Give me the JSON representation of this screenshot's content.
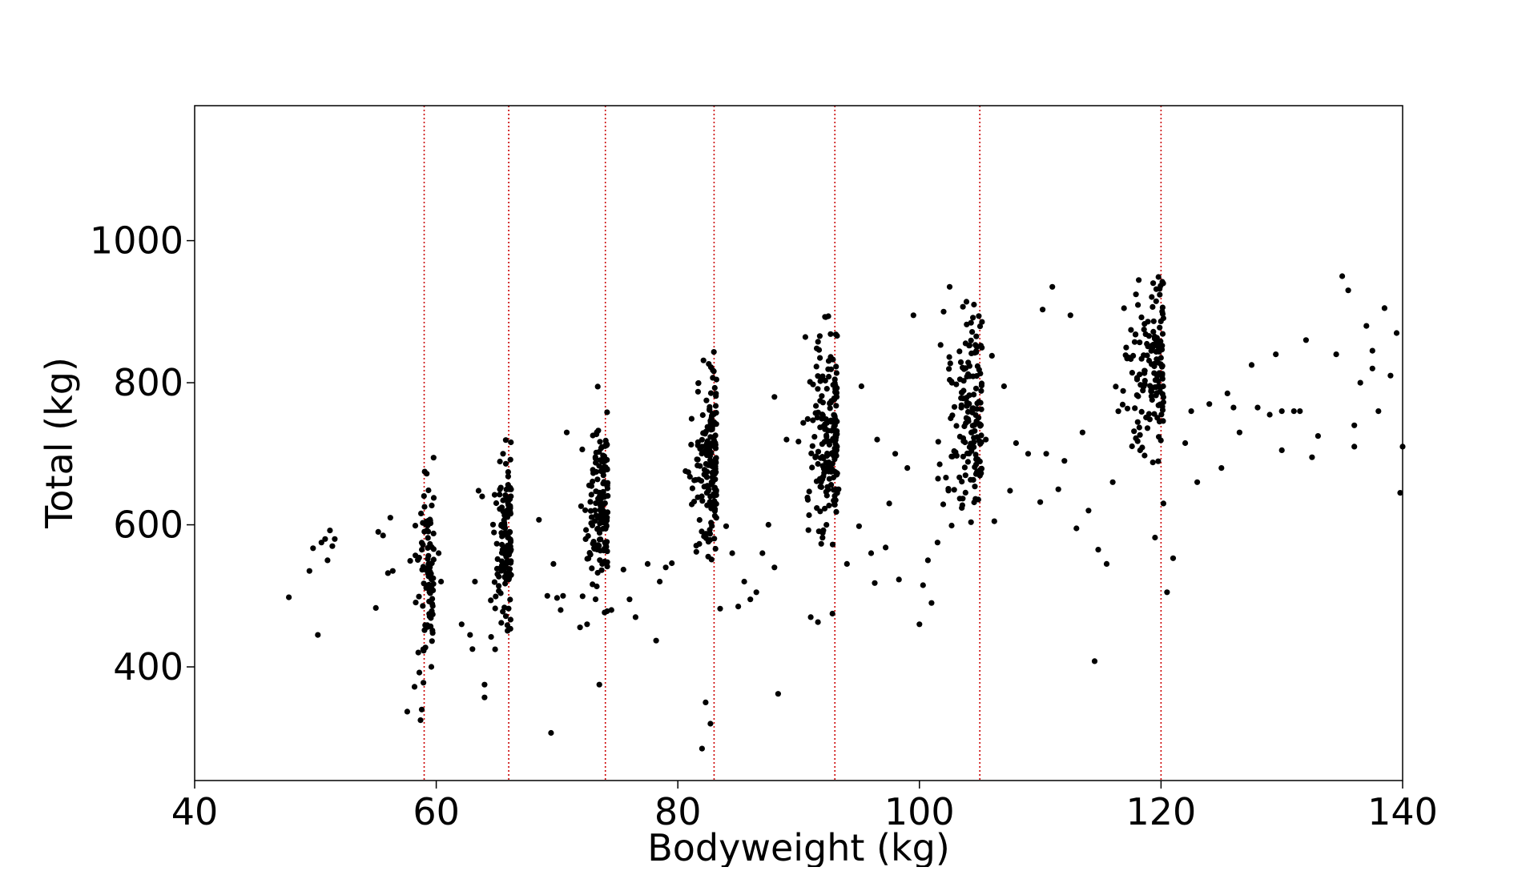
{
  "chart_data": {
    "type": "scatter",
    "title": "",
    "xlabel": "Bodyweight (kg)",
    "ylabel": "Total (kg)",
    "xlim": [
      40,
      140
    ],
    "ylim": [
      240,
      1190
    ],
    "x_ticks": [
      40,
      60,
      80,
      100,
      120,
      140
    ],
    "y_ticks": [
      400,
      600,
      800,
      1000
    ],
    "grid": false,
    "point_color": "#000000",
    "reference_line_color": "#cc0000",
    "reference_lines_x": [
      59,
      66,
      74,
      83,
      93,
      105,
      120
    ],
    "clusters": [
      {
        "x_range": [
          57.5,
          59.8
        ],
        "y_center": 530,
        "y_spread": 75,
        "count": 90
      },
      {
        "x_range": [
          64.3,
          66.2
        ],
        "y_center": 575,
        "y_spread": 70,
        "count": 130
      },
      {
        "x_range": [
          71.5,
          74.2
        ],
        "y_center": 625,
        "y_spread": 75,
        "count": 150
      },
      {
        "x_range": [
          80.5,
          83.2
        ],
        "y_center": 680,
        "y_spread": 75,
        "count": 170
      },
      {
        "x_range": [
          89.5,
          93.2
        ],
        "y_center": 720,
        "y_spread": 80,
        "count": 190
      },
      {
        "x_range": [
          101.0,
          105.2
        ],
        "y_center": 760,
        "y_spread": 80,
        "count": 160
      },
      {
        "x_range": [
          115.5,
          120.2
        ],
        "y_center": 820,
        "y_spread": 80,
        "count": 150
      }
    ],
    "points": [
      [
        47.8,
        498
      ],
      [
        49.5,
        535
      ],
      [
        49.8,
        567
      ],
      [
        50.2,
        445
      ],
      [
        50.5,
        575
      ],
      [
        50.8,
        580
      ],
      [
        51.0,
        550
      ],
      [
        51.2,
        592
      ],
      [
        51.4,
        570
      ],
      [
        51.6,
        580
      ],
      [
        55.0,
        483
      ],
      [
        55.2,
        590
      ],
      [
        55.6,
        585
      ],
      [
        56.0,
        532
      ],
      [
        56.2,
        610
      ],
      [
        56.4,
        535
      ],
      [
        57.6,
        337
      ],
      [
        58.2,
        372
      ],
      [
        58.7,
        325
      ],
      [
        58.8,
        340
      ],
      [
        58.6,
        392
      ],
      [
        60.2,
        560
      ],
      [
        60.4,
        520
      ],
      [
        62.1,
        460
      ],
      [
        62.8,
        445
      ],
      [
        63.0,
        425
      ],
      [
        63.2,
        520
      ],
      [
        63.5,
        648
      ],
      [
        64.0,
        375
      ],
      [
        64.0,
        357
      ],
      [
        63.8,
        640
      ],
      [
        68.5,
        607
      ],
      [
        69.5,
        307
      ],
      [
        69.2,
        500
      ],
      [
        69.7,
        545
      ],
      [
        70.5,
        500
      ],
      [
        70.0,
        497
      ],
      [
        70.3,
        480
      ],
      [
        70.8,
        730
      ],
      [
        73.5,
        375
      ],
      [
        74.5,
        480
      ],
      [
        75.5,
        537
      ],
      [
        76.0,
        495
      ],
      [
        76.5,
        470
      ],
      [
        77.5,
        545
      ],
      [
        78.2,
        437
      ],
      [
        78.5,
        520
      ],
      [
        79.0,
        540
      ],
      [
        79.5,
        546
      ],
      [
        82.3,
        350
      ],
      [
        82.0,
        285
      ],
      [
        82.7,
        320
      ],
      [
        83.5,
        482
      ],
      [
        84.0,
        598
      ],
      [
        84.5,
        560
      ],
      [
        85.0,
        485
      ],
      [
        85.5,
        520
      ],
      [
        86.0,
        495
      ],
      [
        86.5,
        505
      ],
      [
        87.0,
        560
      ],
      [
        87.5,
        600
      ],
      [
        88.0,
        540
      ],
      [
        88.3,
        362
      ],
      [
        88.0,
        780
      ],
      [
        89.0,
        720
      ],
      [
        91.0,
        470
      ],
      [
        91.6,
        463
      ],
      [
        92.8,
        475
      ],
      [
        93.3,
        650
      ],
      [
        94.0,
        545
      ],
      [
        95.0,
        598
      ],
      [
        95.2,
        795
      ],
      [
        96.0,
        560
      ],
      [
        96.3,
        518
      ],
      [
        96.5,
        720
      ],
      [
        97.2,
        568
      ],
      [
        97.5,
        630
      ],
      [
        98.0,
        700
      ],
      [
        98.3,
        523
      ],
      [
        99.0,
        680
      ],
      [
        99.5,
        895
      ],
      [
        100.0,
        460
      ],
      [
        100.3,
        515
      ],
      [
        100.7,
        550
      ],
      [
        101.0,
        490
      ],
      [
        101.5,
        575
      ],
      [
        102.0,
        900
      ],
      [
        102.5,
        935
      ],
      [
        105.5,
        720
      ],
      [
        106.0,
        838
      ],
      [
        106.2,
        605
      ],
      [
        107.0,
        795
      ],
      [
        107.5,
        648
      ],
      [
        108.0,
        715
      ],
      [
        109.0,
        700
      ],
      [
        110.0,
        632
      ],
      [
        110.2,
        903
      ],
      [
        110.5,
        700
      ],
      [
        111.0,
        935
      ],
      [
        111.5,
        650
      ],
      [
        112.0,
        690
      ],
      [
        112.5,
        895
      ],
      [
        113.0,
        595
      ],
      [
        113.5,
        730
      ],
      [
        114.0,
        620
      ],
      [
        114.5,
        408
      ],
      [
        114.8,
        565
      ],
      [
        115.5,
        545
      ],
      [
        116.0,
        660
      ],
      [
        119.5,
        582
      ],
      [
        120.2,
        630
      ],
      [
        120.5,
        505
      ],
      [
        121.0,
        553
      ],
      [
        122.0,
        715
      ],
      [
        122.5,
        760
      ],
      [
        123.0,
        660
      ],
      [
        124.0,
        770
      ],
      [
        125.0,
        680
      ],
      [
        125.5,
        785
      ],
      [
        126.0,
        765
      ],
      [
        126.5,
        730
      ],
      [
        127.5,
        825
      ],
      [
        128.0,
        765
      ],
      [
        129.0,
        755
      ],
      [
        129.5,
        840
      ],
      [
        130.0,
        705
      ],
      [
        130.0,
        760
      ],
      [
        131.0,
        760
      ],
      [
        131.5,
        760
      ],
      [
        132.0,
        860
      ],
      [
        132.5,
        695
      ],
      [
        133.0,
        725
      ],
      [
        134.5,
        840
      ],
      [
        135.0,
        950
      ],
      [
        135.5,
        930
      ],
      [
        136.0,
        710
      ],
      [
        136.0,
        740
      ],
      [
        136.5,
        800
      ],
      [
        137.0,
        880
      ],
      [
        137.5,
        820
      ],
      [
        137.5,
        845
      ],
      [
        138.0,
        760
      ],
      [
        138.5,
        905
      ],
      [
        139.0,
        810
      ],
      [
        139.5,
        870
      ],
      [
        139.8,
        645
      ],
      [
        140.0,
        710
      ]
    ]
  }
}
